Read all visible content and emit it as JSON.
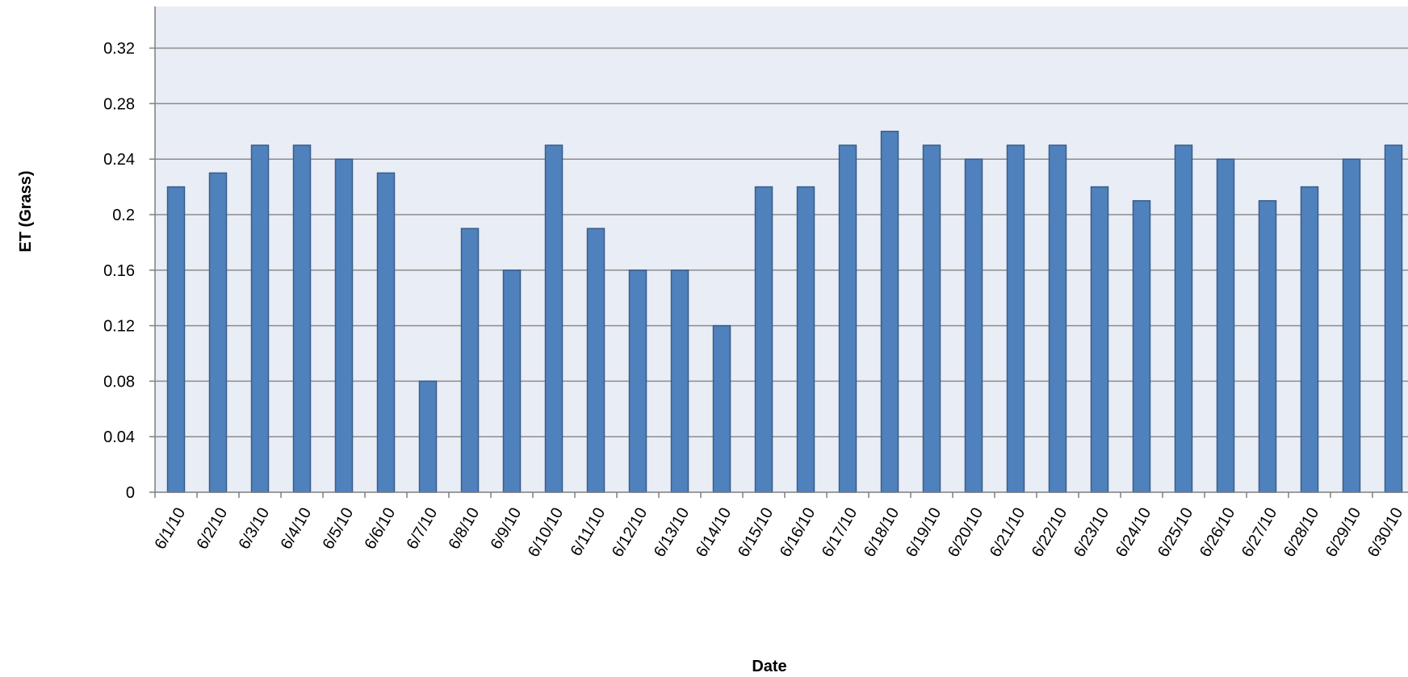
{
  "chart_data": {
    "type": "bar",
    "title": "",
    "xlabel": "Date",
    "ylabel": "ET (Grass)",
    "ylim": [
      0,
      0.35
    ],
    "yticks": [
      0,
      0.04,
      0.08,
      0.12,
      0.16,
      0.2,
      0.24,
      0.28,
      0.32
    ],
    "ytick_labels": [
      "0",
      "0.04",
      "0.08",
      "0.12",
      "0.16",
      "0.2",
      "0.24",
      "0.28",
      "0.32"
    ],
    "grid": true,
    "legend": "none",
    "categories": [
      "6/1/10",
      "6/2/10",
      "6/3/10",
      "6/4/10",
      "6/5/10",
      "6/6/10",
      "6/7/10",
      "6/8/10",
      "6/9/10",
      "6/10/10",
      "6/11/10",
      "6/12/10",
      "6/13/10",
      "6/14/10",
      "6/15/10",
      "6/16/10",
      "6/17/10",
      "6/18/10",
      "6/19/10",
      "6/20/10",
      "6/21/10",
      "6/22/10",
      "6/23/10",
      "6/24/10",
      "6/25/10",
      "6/26/10",
      "6/27/10",
      "6/28/10",
      "6/29/10",
      "6/30/10"
    ],
    "values": [
      0.22,
      0.23,
      0.25,
      0.25,
      0.24,
      0.23,
      0.08,
      0.19,
      0.16,
      0.25,
      0.19,
      0.16,
      0.16,
      0.12,
      0.22,
      0.22,
      0.25,
      0.26,
      0.25,
      0.24,
      0.25,
      0.25,
      0.22,
      0.21,
      0.25,
      0.24,
      0.21,
      0.22,
      0.24,
      0.25
    ]
  },
  "colors": {
    "bar_fill": "#4f81bd",
    "bar_stroke": "#385d8a",
    "plot_background": "#e9edf5",
    "gridline": "#8c8c8c",
    "axis": "#7f7f7f"
  }
}
